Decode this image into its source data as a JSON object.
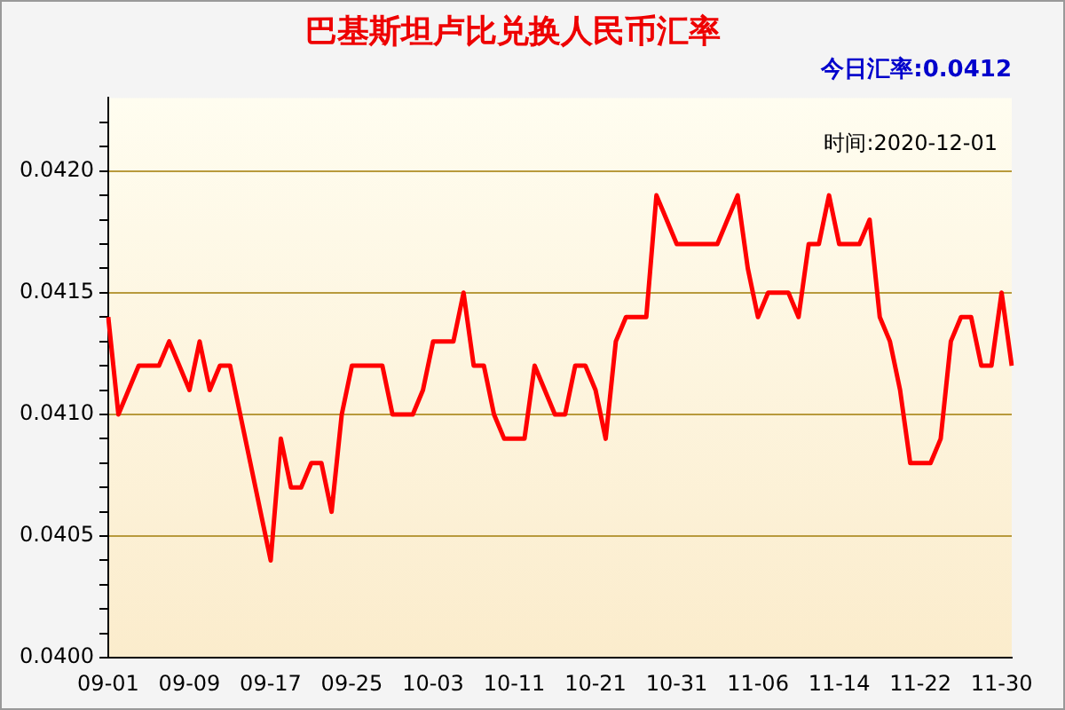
{
  "chart_data": {
    "type": "line",
    "title": "巴基斯坦卢比兑换人民币汇率",
    "subtitle": "今日汇率:0.0412",
    "annotations": [
      "时间:2020-12-01"
    ],
    "categories": [
      "09-01",
      null,
      null,
      null,
      null,
      null,
      null,
      null,
      "09-09",
      null,
      null,
      null,
      null,
      null,
      null,
      null,
      "09-17",
      null,
      null,
      null,
      null,
      null,
      null,
      null,
      "09-25",
      null,
      null,
      null,
      null,
      null,
      null,
      null,
      "10-03",
      null,
      null,
      null,
      null,
      null,
      null,
      null,
      "10-11",
      null,
      null,
      null,
      null,
      null,
      null,
      null,
      "10-21",
      null,
      null,
      null,
      null,
      null,
      null,
      null,
      "10-31",
      null,
      null,
      null,
      null,
      null,
      null,
      null,
      "11-06",
      null,
      null,
      null,
      null,
      null,
      null,
      null,
      "11-14",
      null,
      null,
      null,
      null,
      null,
      null,
      null,
      "11-22",
      null,
      null,
      null,
      null,
      null,
      null,
      null,
      "11-30",
      null
    ],
    "series": [
      {
        "color": "#ff0000",
        "values": [
          0.0414,
          0.041,
          0.0411,
          0.0412,
          0.0412,
          0.0412,
          0.0413,
          0.0412,
          0.0411,
          0.0413,
          0.0411,
          0.0412,
          0.0412,
          0.041,
          0.0408,
          0.0406,
          0.0404,
          0.0409,
          0.0407,
          0.0407,
          0.0408,
          0.0408,
          0.0406,
          0.041,
          0.0412,
          0.0412,
          0.0412,
          0.0412,
          0.041,
          0.041,
          0.041,
          0.0411,
          0.0413,
          0.0413,
          0.0413,
          0.0415,
          0.0412,
          0.0412,
          0.041,
          0.0409,
          0.0409,
          0.0409,
          0.0412,
          0.0411,
          0.041,
          0.041,
          0.0412,
          0.0412,
          0.0411,
          0.0409,
          0.0413,
          0.0414,
          0.0414,
          0.0414,
          0.0419,
          0.0418,
          0.0417,
          0.0417,
          0.0417,
          0.0417,
          0.0417,
          0.0418,
          0.0419,
          0.0416,
          0.0414,
          0.0415,
          0.0415,
          0.0415,
          0.0414,
          0.0417,
          0.0417,
          0.0419,
          0.0417,
          0.0417,
          0.0417,
          0.0418,
          0.0414,
          0.0413,
          0.0411,
          0.0408,
          0.0408,
          0.0408,
          0.0409,
          0.0413,
          0.0414,
          0.0414,
          0.0412,
          0.0412,
          0.0415,
          0.0412
        ]
      }
    ],
    "ylim": [
      0.04,
      0.0423
    ],
    "yticks": [
      {
        "value": 0.04,
        "label": "0.0400"
      },
      {
        "value": 0.0401,
        "label": null
      },
      {
        "value": 0.0402,
        "label": null
      },
      {
        "value": 0.0403,
        "label": null
      },
      {
        "value": 0.0404,
        "label": null
      },
      {
        "value": 0.0405,
        "label": "0.0405"
      },
      {
        "value": 0.0406,
        "label": null
      },
      {
        "value": 0.0407,
        "label": null
      },
      {
        "value": 0.0408,
        "label": null
      },
      {
        "value": 0.0409,
        "label": null
      },
      {
        "value": 0.041,
        "label": "0.0410"
      },
      {
        "value": 0.0411,
        "label": null
      },
      {
        "value": 0.0412,
        "label": null
      },
      {
        "value": 0.0413,
        "label": null
      },
      {
        "value": 0.0414,
        "label": null
      },
      {
        "value": 0.0415,
        "label": "0.0415"
      },
      {
        "value": 0.0416,
        "label": null
      },
      {
        "value": 0.0417,
        "label": null
      },
      {
        "value": 0.0418,
        "label": null
      },
      {
        "value": 0.0419,
        "label": null
      },
      {
        "value": 0.042,
        "label": "0.0420"
      },
      {
        "value": 0.0421,
        "label": null
      },
      {
        "value": 0.0422,
        "label": null
      }
    ],
    "grid": "y",
    "legend": false,
    "marker": "none",
    "line_style": "solid"
  }
}
